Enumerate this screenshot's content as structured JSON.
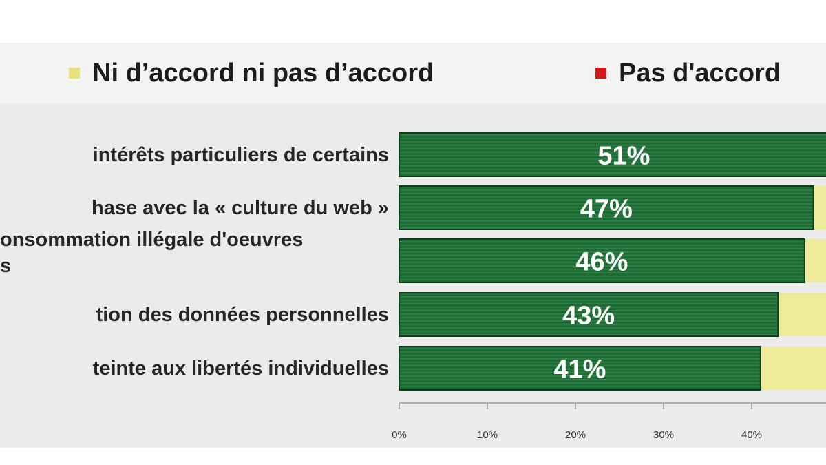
{
  "legend": {
    "items": [
      {
        "label": "Ni d’accord ni pas d’accord",
        "color": "#e8e27a"
      },
      {
        "label": "Pas d'accord",
        "color": "#d01a1a"
      }
    ]
  },
  "colors": {
    "agree_bar": "#1f6b35",
    "agree_bar_stripe": "#2f8246",
    "agree_bar_border": "#0e3d1b",
    "neutral_bar": "#eeeb9a",
    "value_label": "#ffffff"
  },
  "chart_data": {
    "type": "bar",
    "orientation": "horizontal",
    "stacked": true,
    "categories": [
      [
        "intérêts particuliers de certains"
      ],
      [
        "hase avec la « culture du web »"
      ],
      [
        "onsommation illégale d'oeuvres",
        "s"
      ],
      [
        "tion des données personnelles"
      ],
      [
        "teinte aux libertés individuelles"
      ]
    ],
    "series": [
      {
        "values": [
          51,
          47,
          46,
          43,
          41
        ],
        "color": "#1f6b35"
      },
      {
        "name": "Ni d’accord ni pas d’accord",
        "values": [
          null,
          null,
          null,
          null,
          null
        ],
        "color": "#eeeb9a"
      }
    ],
    "value_labels": [
      "51%",
      "47%",
      "46%",
      "43%",
      "41%"
    ],
    "x_ticks": [
      "0%",
      "10%",
      "20%",
      "30%",
      "40%"
    ],
    "x_tick_values": [
      0,
      10,
      20,
      30,
      40
    ],
    "xlim": [
      0,
      50
    ],
    "legend_position": "top",
    "grid": false
  }
}
